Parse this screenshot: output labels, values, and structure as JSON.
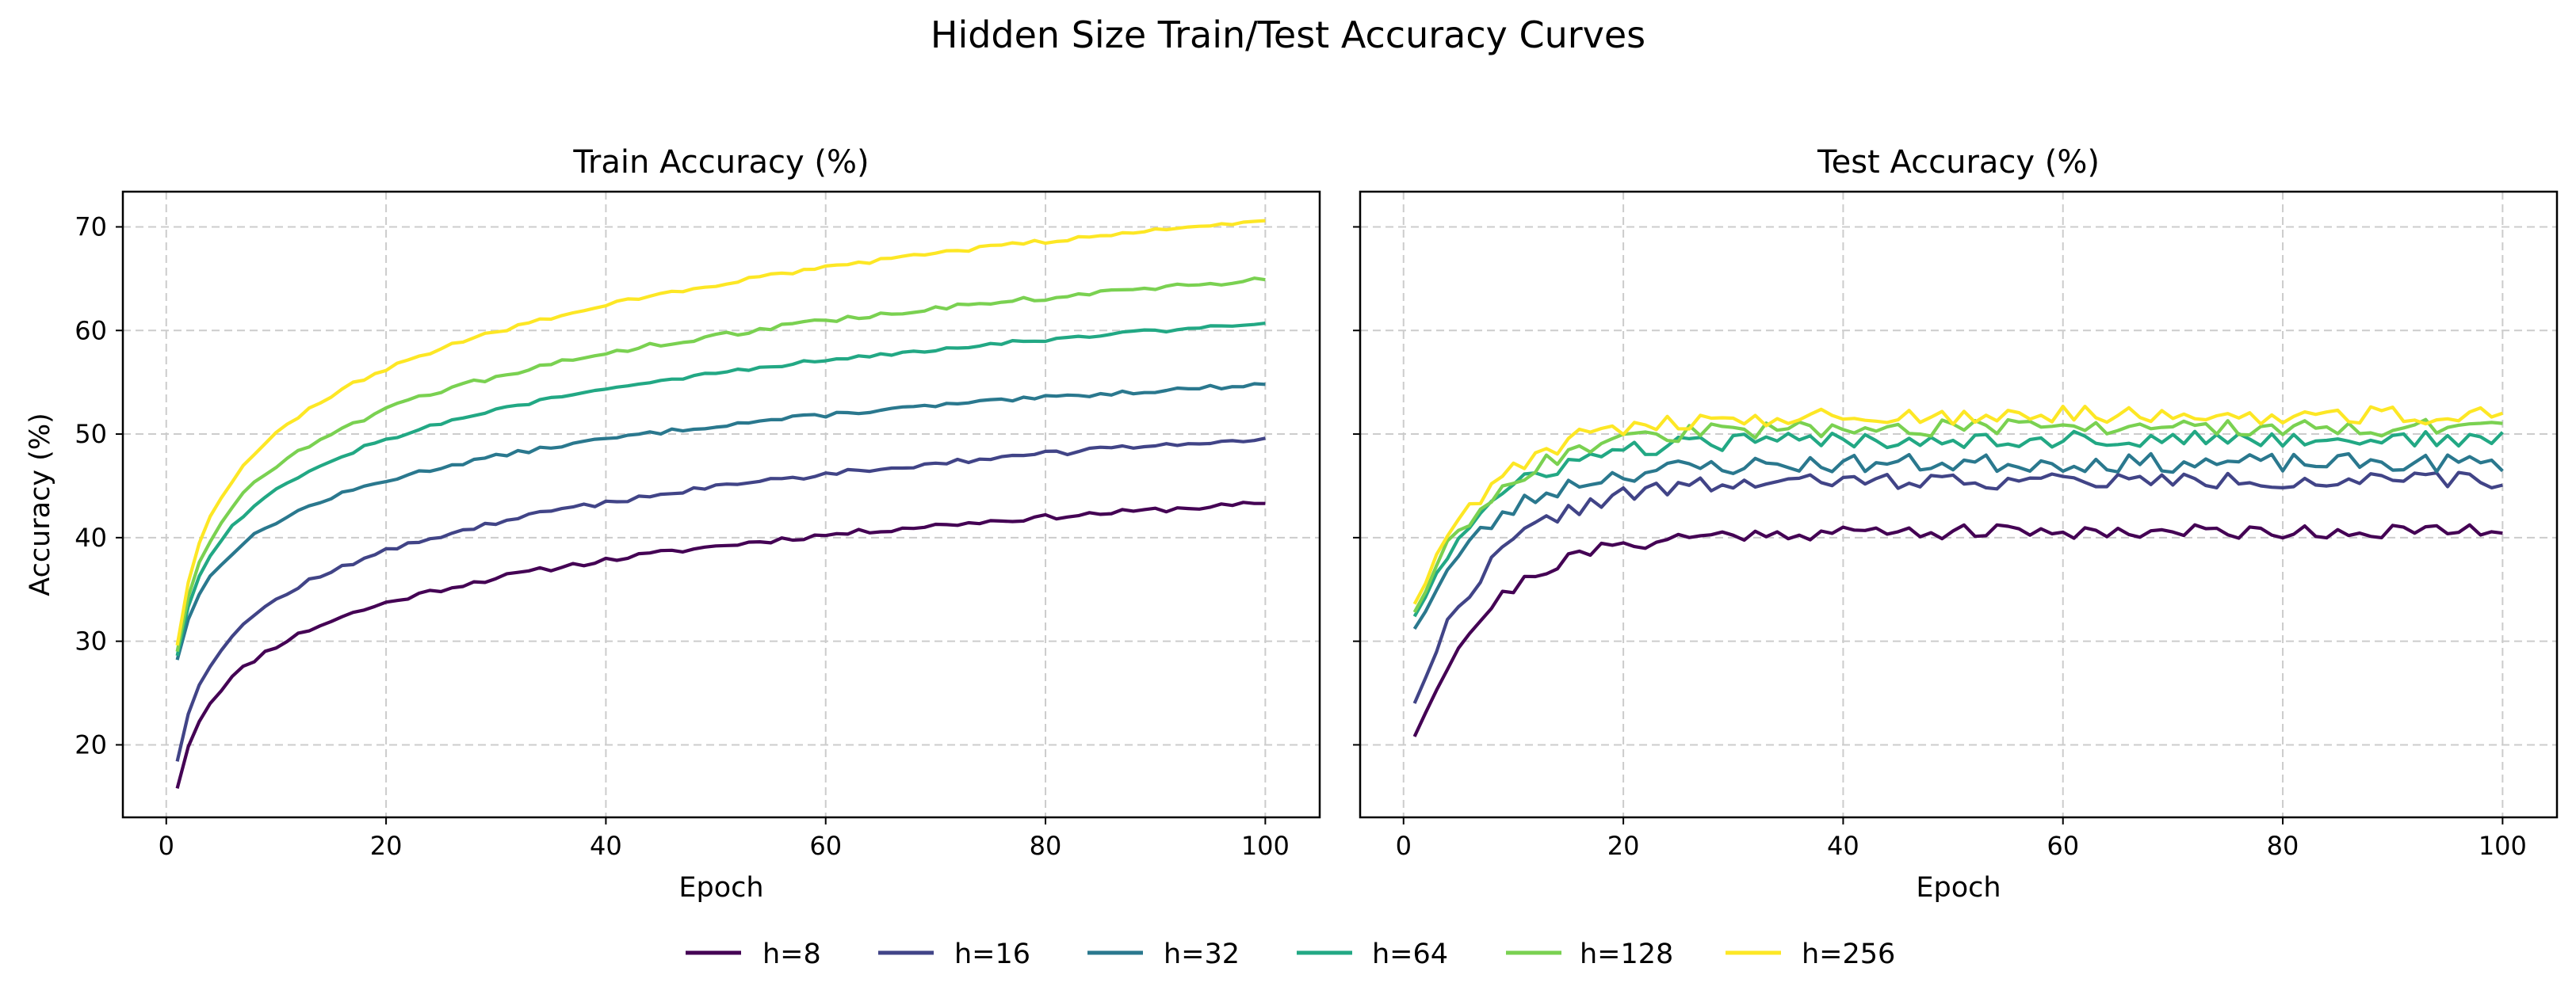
{
  "figure": {
    "title": "Hidden Size Train/Test Accuracy Curves"
  },
  "chart_data": [
    {
      "type": "line",
      "title": "Train Accuracy (%)",
      "xlabel": "Epoch",
      "ylabel": "Accuracy (%)",
      "xlim": [
        -3.95,
        104.95
      ],
      "ylim": [
        13.0,
        73.4
      ],
      "xticks": [
        0,
        20,
        40,
        60,
        80,
        100
      ],
      "yticks": [
        20,
        30,
        40,
        50,
        60,
        70
      ],
      "grid": true,
      "shape": "log",
      "series": [
        {
          "name": "h=8",
          "start": 15.8,
          "end": 43.3,
          "noise": 0.25,
          "seed": 11
        },
        {
          "name": "h=16",
          "start": 18.4,
          "end": 49.6,
          "noise": 0.25,
          "seed": 12
        },
        {
          "name": "h=32",
          "start": 28.2,
          "end": 54.8,
          "noise": 0.2,
          "seed": 13
        },
        {
          "name": "h=64",
          "start": 28.6,
          "end": 60.7,
          "noise": 0.2,
          "seed": 14
        },
        {
          "name": "h=128",
          "start": 29.0,
          "end": 64.9,
          "noise": 0.25,
          "seed": 15
        },
        {
          "name": "h=256",
          "start": 29.6,
          "end": 70.6,
          "noise": 0.2,
          "seed": 16
        }
      ]
    },
    {
      "type": "line",
      "title": "Test Accuracy (%)",
      "xlabel": "Epoch",
      "ylabel": "",
      "xlim": [
        -3.95,
        104.95
      ],
      "ylim": [
        13.0,
        73.4
      ],
      "xticks": [
        0,
        20,
        40,
        60,
        80,
        100
      ],
      "yticks": [
        20,
        30,
        40,
        50,
        60,
        70
      ],
      "grid": true,
      "shape": "sat",
      "series": [
        {
          "name": "h=8",
          "start": 20.8,
          "plateau": 40.6,
          "noise": 0.7,
          "seed": 21
        },
        {
          "name": "h=16",
          "start": 24.0,
          "plateau": 45.5,
          "noise": 0.8,
          "seed": 22
        },
        {
          "name": "h=32",
          "start": 31.2,
          "plateau": 47.2,
          "noise": 0.9,
          "seed": 23
        },
        {
          "name": "h=64",
          "start": 32.4,
          "plateau": 49.5,
          "noise": 0.8,
          "seed": 24
        },
        {
          "name": "h=128",
          "start": 32.8,
          "plateau": 50.6,
          "noise": 0.8,
          "seed": 25
        },
        {
          "name": "h=256",
          "start": 33.6,
          "plateau": 51.8,
          "noise": 0.9,
          "seed": 26
        }
      ]
    }
  ],
  "legend": {
    "placement": "bottom-center",
    "entries": [
      "h=8",
      "h=16",
      "h=32",
      "h=64",
      "h=128",
      "h=256"
    ]
  },
  "colors": {
    "h=8": "#440154",
    "h=16": "#414487",
    "h=32": "#2a788e",
    "h=64": "#22a884",
    "h=128": "#7ad151",
    "h=256": "#fde725"
  }
}
